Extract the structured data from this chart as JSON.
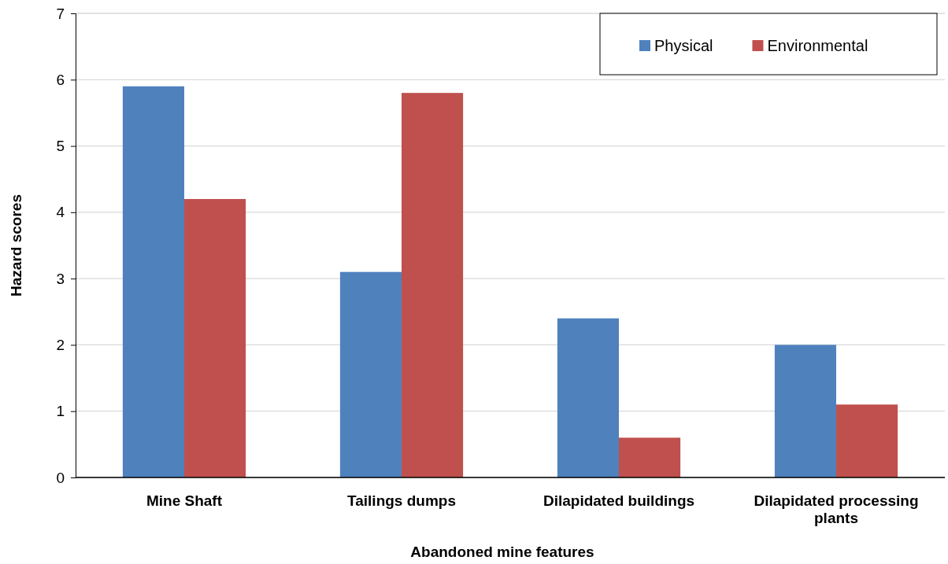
{
  "chart_data": {
    "type": "bar",
    "xlabel": "Abandoned mine features",
    "ylabel": "Hazard scores",
    "categories": [
      "Mine Shaft",
      "Tailings dumps",
      "Dilapidated buildings",
      "Dilapidated processing plants"
    ],
    "series": [
      {
        "name": "Physical",
        "color": "#4f81bd",
        "values": [
          5.9,
          3.1,
          2.4,
          2.0
        ]
      },
      {
        "name": "Environmental",
        "color": "#c0504d",
        "values": [
          4.2,
          5.8,
          0.6,
          1.1
        ]
      }
    ],
    "ylim": [
      0,
      7
    ],
    "yticks": [
      0,
      1,
      2,
      3,
      4,
      5,
      6,
      7
    ],
    "grid": "y",
    "legend": "top right"
  }
}
